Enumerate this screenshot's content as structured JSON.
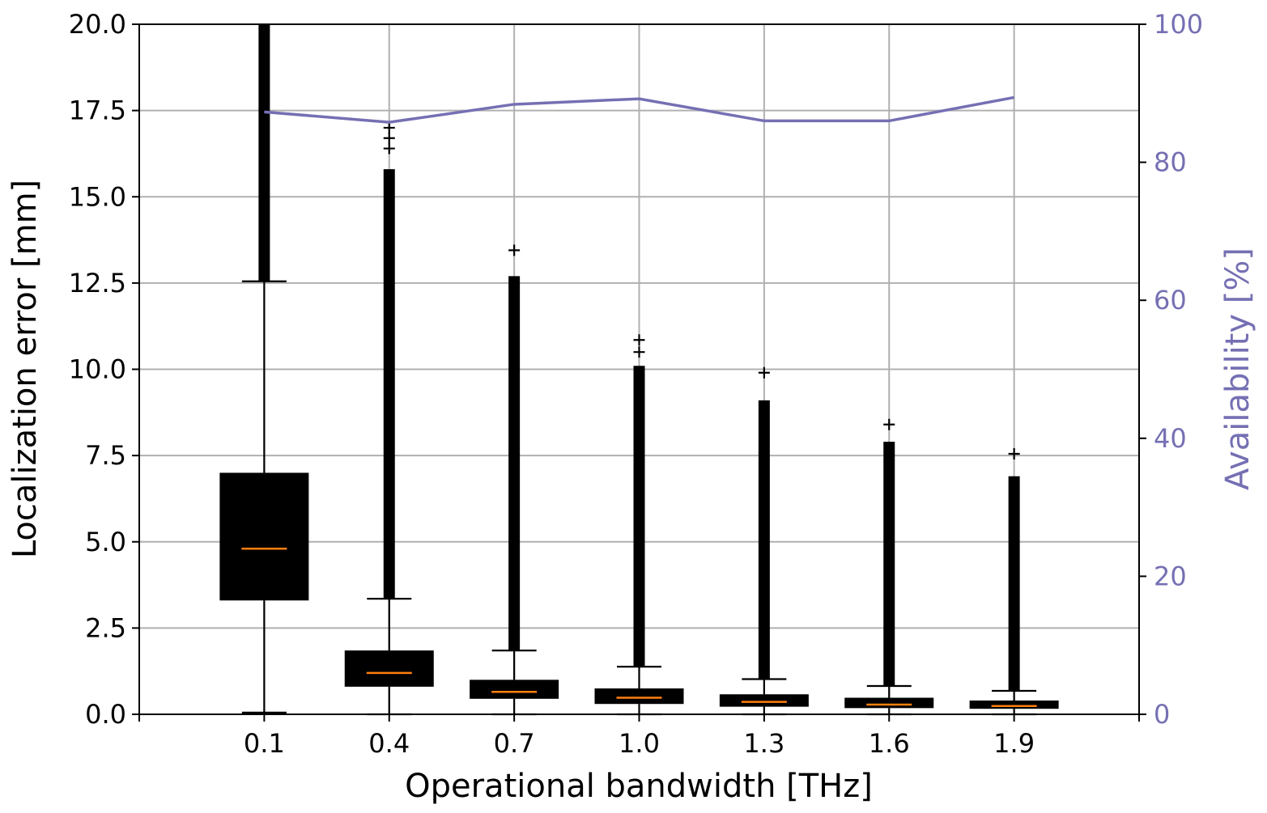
{
  "chart_data": {
    "type": "box+line",
    "xlabel": "Operational bandwidth [THz]",
    "ylabel": "Localization error [mm]",
    "ylabel_right": "Availability [%]",
    "categories": [
      "0.1",
      "0.4",
      "0.7",
      "1.0",
      "1.3",
      "1.6",
      "1.9"
    ],
    "x_values": [
      0.1,
      0.4,
      0.7,
      1.0,
      1.3,
      1.6,
      1.9
    ],
    "xlim": [
      -0.2,
      2.2
    ],
    "ylim": [
      0,
      20
    ],
    "ylim_right": [
      0,
      100
    ],
    "yticks": [
      "0.0",
      "2.5",
      "5.0",
      "7.5",
      "10.0",
      "12.5",
      "15.0",
      "17.5",
      "20.0"
    ],
    "yticks_right": [
      "0",
      "20",
      "40",
      "60",
      "80",
      "100"
    ],
    "grid": true,
    "colors": {
      "box_fill": "#000000",
      "median": "#ff7f0e",
      "availability_line": "#7570b3",
      "grid": "#b0b0b0"
    },
    "boxes": [
      {
        "x": 0.1,
        "q1": 3.3,
        "median": 4.8,
        "q3": 7.0,
        "whisker_low": 0.05,
        "whisker_high": 12.55,
        "flier_min": 12.55,
        "flier_max": 20.0,
        "flier_extra": []
      },
      {
        "x": 0.4,
        "q1": 0.8,
        "median": 1.2,
        "q3": 1.85,
        "whisker_low": 0.0,
        "whisker_high": 3.35,
        "flier_min": 3.35,
        "flier_max": 15.8,
        "flier_extra": [
          16.4,
          16.7,
          17.0
        ]
      },
      {
        "x": 0.7,
        "q1": 0.45,
        "median": 0.65,
        "q3": 1.0,
        "whisker_low": 0.0,
        "whisker_high": 1.85,
        "flier_min": 1.85,
        "flier_max": 12.7,
        "flier_extra": [
          13.45
        ]
      },
      {
        "x": 1.0,
        "q1": 0.3,
        "median": 0.48,
        "q3": 0.75,
        "whisker_low": 0.0,
        "whisker_high": 1.38,
        "flier_min": 1.38,
        "flier_max": 10.1,
        "flier_extra": [
          10.5,
          10.85
        ]
      },
      {
        "x": 1.3,
        "q1": 0.22,
        "median": 0.36,
        "q3": 0.58,
        "whisker_low": 0.0,
        "whisker_high": 1.02,
        "flier_min": 1.02,
        "flier_max": 9.1,
        "flier_extra": [
          9.9
        ]
      },
      {
        "x": 1.6,
        "q1": 0.18,
        "median": 0.28,
        "q3": 0.48,
        "whisker_low": 0.0,
        "whisker_high": 0.82,
        "flier_min": 0.82,
        "flier_max": 7.9,
        "flier_extra": [
          8.4
        ]
      },
      {
        "x": 1.9,
        "q1": 0.16,
        "median": 0.24,
        "q3": 0.4,
        "whisker_low": 0.0,
        "whisker_high": 0.68,
        "flier_min": 0.68,
        "flier_max": 6.9,
        "flier_extra": [
          7.55
        ]
      }
    ],
    "availability": {
      "x": [
        0.1,
        0.4,
        0.7,
        1.0,
        1.3,
        1.6,
        1.9
      ],
      "values": [
        87.3,
        85.8,
        88.4,
        89.2,
        86.0,
        86.0,
        89.4
      ]
    }
  }
}
